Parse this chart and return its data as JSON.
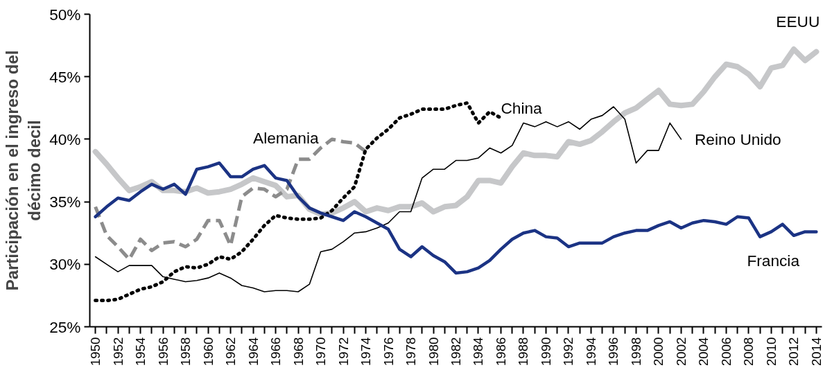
{
  "chart_data": {
    "type": "line",
    "ylabel": "Participación en el ingreso del décimo decil",
    "xlim": [
      1949.5,
      2014.5
    ],
    "ylim": [
      25,
      50
    ],
    "yticks": [
      {
        "value": 25,
        "label": "25%"
      },
      {
        "value": 30,
        "label": "30%"
      },
      {
        "value": 35,
        "label": "35%"
      },
      {
        "value": 40,
        "label": "40%"
      },
      {
        "value": 45,
        "label": "45%"
      },
      {
        "value": 50,
        "label": "50%"
      }
    ],
    "xticks": [
      1950,
      {
        "value": 1951,
        "label": null
      },
      1952,
      {
        "value": 1953,
        "label": null
      },
      1954,
      {
        "value": 1955,
        "label": null
      },
      1956,
      {
        "value": 1957,
        "label": null
      },
      1958,
      {
        "value": 1959,
        "label": null
      },
      1960,
      {
        "value": 1961,
        "label": null
      },
      1962,
      {
        "value": 1963,
        "label": null
      },
      1964,
      {
        "value": 1965,
        "label": null
      },
      1966,
      {
        "value": 1967,
        "label": null
      },
      1968,
      {
        "value": 1969,
        "label": null
      },
      1970,
      {
        "value": 1971,
        "label": null
      },
      1972,
      {
        "value": 1973,
        "label": null
      },
      1974,
      {
        "value": 1975,
        "label": null
      },
      1976,
      {
        "value": 1977,
        "label": null
      },
      1978,
      {
        "value": 1979,
        "label": null
      },
      1980,
      {
        "value": 1981,
        "label": null
      },
      1982,
      {
        "value": 1983,
        "label": null
      },
      1984,
      {
        "value": 1985,
        "label": null
      },
      1986,
      {
        "value": 1987,
        "label": null
      },
      1988,
      {
        "value": 1989,
        "label": null
      },
      1990,
      {
        "value": 1991,
        "label": null
      },
      1992,
      {
        "value": 1993,
        "label": null
      },
      1994,
      {
        "value": 1995,
        "label": null
      },
      1996,
      {
        "value": 1997,
        "label": null
      },
      1998,
      {
        "value": 1999,
        "label": null
      },
      2000,
      {
        "value": 2001,
        "label": null
      },
      2002,
      {
        "value": 2003,
        "label": null
      },
      2004,
      {
        "value": 2005,
        "label": null
      },
      2006,
      {
        "value": 2007,
        "label": null
      },
      2008,
      {
        "value": 2009,
        "label": null
      },
      2010,
      {
        "value": 2011,
        "label": null
      },
      2012,
      {
        "value": 2013,
        "label": null
      },
      2014
    ],
    "grid": false,
    "marker": "none",
    "series": [
      {
        "name": "EEUU",
        "color": "#c6c7c9",
        "line_style": "solid",
        "x": [
          1950,
          1951,
          1952,
          1953,
          1954,
          1955,
          1956,
          1957,
          1958,
          1959,
          1960,
          1961,
          1962,
          1963,
          1964,
          1965,
          1966,
          1967,
          1968,
          1969,
          1970,
          1971,
          1972,
          1973,
          1974,
          1975,
          1976,
          1977,
          1978,
          1979,
          1980,
          1981,
          1982,
          1983,
          1984,
          1985,
          1986,
          1987,
          1988,
          1989,
          1990,
          1991,
          1992,
          1993,
          1994,
          1995,
          1996,
          1997,
          1998,
          1999,
          2000,
          2001,
          2002,
          2003,
          2004,
          2005,
          2006,
          2007,
          2008,
          2009,
          2010,
          2011,
          2012,
          2013,
          2014
        ],
        "values": [
          39.0,
          38.0,
          36.9,
          35.9,
          36.2,
          36.6,
          35.9,
          35.9,
          35.8,
          36.1,
          35.7,
          35.8,
          36.0,
          36.4,
          36.9,
          36.6,
          36.3,
          35.4,
          35.5,
          34.4,
          34.0,
          34.1,
          34.5,
          35.0,
          34.2,
          34.5,
          34.3,
          34.6,
          34.6,
          34.9,
          34.2,
          34.6,
          34.7,
          35.4,
          36.7,
          36.7,
          36.5,
          37.8,
          38.9,
          38.7,
          38.7,
          38.6,
          39.8,
          39.6,
          39.9,
          40.6,
          41.4,
          42.1,
          42.5,
          43.2,
          43.9,
          42.8,
          42.7,
          42.8,
          43.8,
          45.0,
          46.0,
          45.8,
          45.2,
          44.2,
          45.7,
          45.9,
          47.2,
          46.3,
          47.0
        ]
      },
      {
        "name": "Alemania",
        "color": "#8c8c8c",
        "line_style": "dashed",
        "x": [
          1950,
          1951,
          1952,
          1953,
          1954,
          1955,
          1956,
          1957,
          1958,
          1959,
          1960,
          1961,
          1962,
          1963,
          1964,
          1965,
          1966,
          1967,
          1968,
          1969,
          1970,
          1971,
          1972,
          1973,
          1974
        ],
        "values": [
          34.6,
          32.3,
          31.4,
          30.4,
          32.0,
          31.1,
          31.7,
          31.8,
          31.4,
          32.0,
          33.5,
          33.5,
          31.5,
          35.4,
          36.1,
          36.0,
          35.4,
          36.0,
          38.4,
          38.4,
          39.3,
          40.0,
          39.8,
          39.7,
          39.0
        ]
      },
      {
        "name": "China",
        "color": "#000000",
        "line_style": "dotted",
        "x": [
          1950,
          1951,
          1952,
          1953,
          1954,
          1955,
          1956,
          1957,
          1958,
          1959,
          1960,
          1961,
          1962,
          1963,
          1964,
          1965,
          1966,
          1967,
          1968,
          1969,
          1970,
          1971,
          1972,
          1973,
          1974,
          1975,
          1976,
          1977,
          1978,
          1979,
          1980,
          1981,
          1982,
          1983,
          1984,
          1985,
          1986
        ],
        "values": [
          27.1,
          27.1,
          27.2,
          27.6,
          28.0,
          28.2,
          28.6,
          29.4,
          29.8,
          29.7,
          30.0,
          30.6,
          30.4,
          31.0,
          32.0,
          33.1,
          33.9,
          33.7,
          33.6,
          33.6,
          33.7,
          34.3,
          35.3,
          36.2,
          39.2,
          40.1,
          40.8,
          41.7,
          42.0,
          42.4,
          42.4,
          42.4,
          42.7,
          42.9,
          41.3,
          42.2,
          41.7
        ]
      },
      {
        "name": "Reino Unido",
        "color": "#000000",
        "line_style": "solid",
        "x": [
          1950,
          1951,
          1952,
          1953,
          1954,
          1955,
          1956,
          1957,
          1958,
          1959,
          1960,
          1961,
          1962,
          1963,
          1964,
          1965,
          1966,
          1967,
          1968,
          1969,
          1970,
          1971,
          1972,
          1973,
          1974,
          1975,
          1976,
          1977,
          1978,
          1979,
          1980,
          1981,
          1982,
          1983,
          1984,
          1985,
          1986,
          1987,
          1988,
          1989,
          1990,
          1991,
          1992,
          1993,
          1994,
          1995,
          1996,
          1997,
          1998,
          1999,
          2000,
          2001,
          2002
        ],
        "values": [
          30.6,
          30.0,
          29.4,
          29.9,
          29.9,
          29.9,
          29.0,
          28.8,
          28.6,
          28.7,
          28.9,
          29.3,
          28.9,
          28.3,
          28.1,
          27.8,
          27.9,
          27.9,
          27.8,
          28.4,
          31.0,
          31.2,
          31.8,
          32.5,
          32.6,
          32.9,
          33.3,
          34.2,
          34.2,
          36.9,
          37.6,
          37.6,
          38.3,
          38.3,
          38.5,
          39.3,
          38.9,
          39.5,
          41.3,
          41.0,
          41.4,
          41.0,
          41.4,
          40.8,
          41.6,
          41.9,
          42.6,
          41.6,
          38.1,
          39.1,
          39.1,
          41.3,
          40.0
        ]
      },
      {
        "name": "Francia",
        "color": "#1b3384",
        "line_style": "solid",
        "x": [
          1950,
          1951,
          1952,
          1953,
          1954,
          1955,
          1956,
          1957,
          1958,
          1959,
          1960,
          1961,
          1962,
          1963,
          1964,
          1965,
          1966,
          1967,
          1968,
          1969,
          1970,
          1971,
          1972,
          1973,
          1974,
          1975,
          1976,
          1977,
          1978,
          1979,
          1980,
          1981,
          1982,
          1983,
          1984,
          1985,
          1986,
          1987,
          1988,
          1989,
          1990,
          1991,
          1992,
          1993,
          1994,
          1995,
          1996,
          1997,
          1998,
          1999,
          2000,
          2001,
          2002,
          2003,
          2004,
          2005,
          2006,
          2007,
          2008,
          2009,
          2010,
          2011,
          2012,
          2013,
          2014
        ],
        "values": [
          33.8,
          34.6,
          35.3,
          35.1,
          35.8,
          36.4,
          36.0,
          36.4,
          35.6,
          37.6,
          37.8,
          38.1,
          37.0,
          37.0,
          37.6,
          37.9,
          36.9,
          36.7,
          35.4,
          34.5,
          34.1,
          33.8,
          33.5,
          34.2,
          33.8,
          33.3,
          32.8,
          31.2,
          30.6,
          31.4,
          30.7,
          30.2,
          29.3,
          29.4,
          29.7,
          30.3,
          31.2,
          32.0,
          32.5,
          32.7,
          32.2,
          32.1,
          31.4,
          31.7,
          31.7,
          31.7,
          32.2,
          32.5,
          32.7,
          32.7,
          33.1,
          33.4,
          32.9,
          33.3,
          33.5,
          33.4,
          33.2,
          33.8,
          33.7,
          32.2,
          32.6,
          33.2,
          32.3,
          32.6,
          32.6
        ]
      }
    ]
  }
}
